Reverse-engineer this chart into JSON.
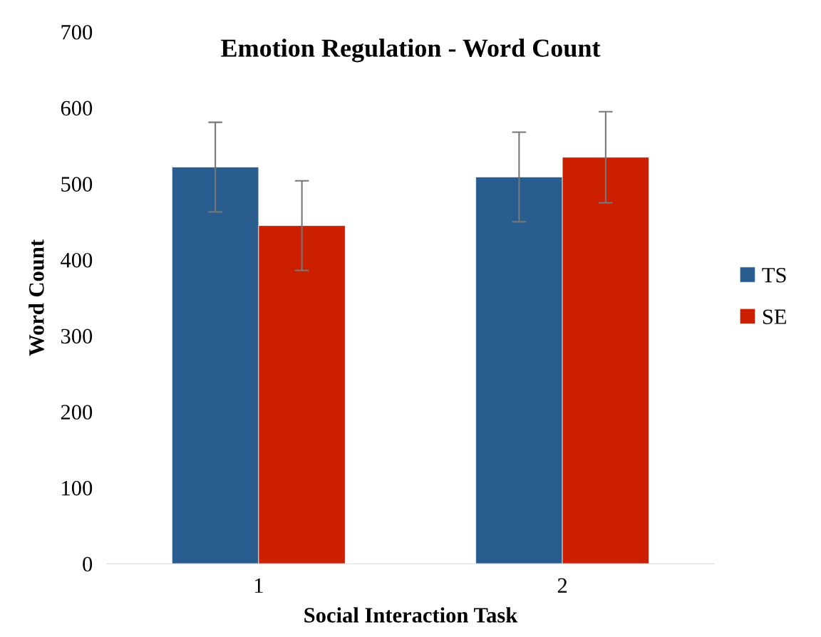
{
  "chart_data": {
    "type": "bar",
    "title": "Emotion Regulation - Word Count",
    "xlabel": "Social Interaction Task",
    "ylabel": "Word Count",
    "categories": [
      "1",
      "2"
    ],
    "series": [
      {
        "name": "TS",
        "color": "#295d8f",
        "values": [
          522,
          509
        ],
        "errors": [
          59,
          59
        ]
      },
      {
        "name": "SE",
        "color": "#cc1f00",
        "values": [
          445,
          535
        ],
        "errors": [
          59,
          60
        ]
      }
    ],
    "ylim": [
      0,
      700
    ],
    "yticks": [
      0,
      100,
      200,
      300,
      400,
      500,
      600,
      700
    ],
    "grid": false,
    "legend": "right"
  }
}
